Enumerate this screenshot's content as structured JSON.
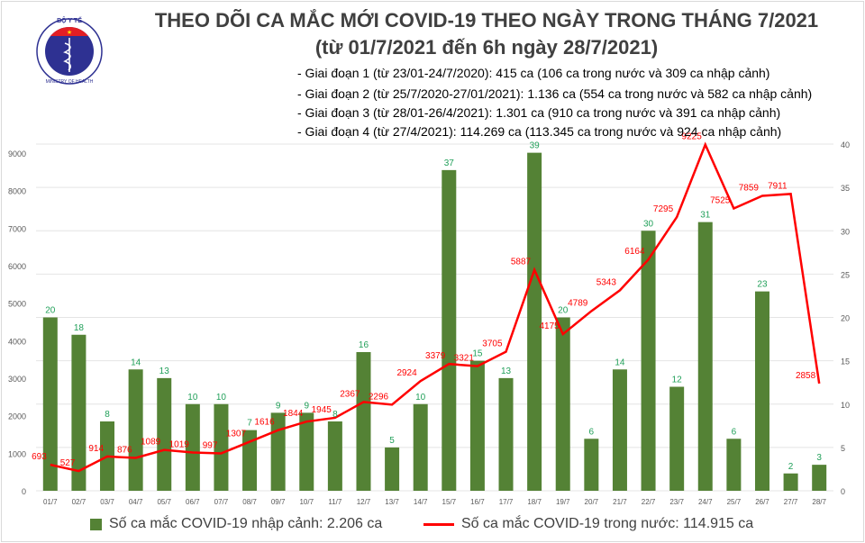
{
  "title": "THEO DÕI CA MẮC MỚI COVID-19 THEO NGÀY TRONG THÁNG 7/2021",
  "subtitle": "(từ 01/7/2021 đến 6h ngày 28/7/2021)",
  "logo": {
    "text_top": "BỘ Y TẾ",
    "text_bottom": "MINISTRY OF HEALTH"
  },
  "phases": [
    "- Giai đoạn 1 (từ 23/01-24/7/2020): 415 ca (106 ca trong nước và 309 ca nhập cảnh)",
    "- Giai đoạn 2 (từ 25/7/2020-27/01/2021): 1.136 ca (554 ca trong nước và 582 ca nhập cảnh)",
    "- Giai đoạn 3 (từ 28/01-26/4/2021): 1.301 ca (910 ca trong nước và 391 ca nhập cảnh)",
    "- Giai đoạn 4 (từ 27/4/2021): 114.269 ca (113.345 ca trong nước và 924 ca nhập cảnh)"
  ],
  "legend": {
    "bar": "Số ca mắc COVID-19 nhập cảnh: 2.206 ca",
    "line": "Số ca mắc COVID-19 trong nước: 114.915 ca"
  },
  "chart_data": {
    "type": "bar+line",
    "categories": [
      "01/7",
      "02/7",
      "03/7",
      "04/7",
      "05/7",
      "06/7",
      "07/7",
      "08/7",
      "09/7",
      "10/7",
      "11/7",
      "12/7",
      "13/7",
      "14/7",
      "15/7",
      "16/7",
      "17/7",
      "18/7",
      "19/7",
      "20/7",
      "21/7",
      "22/7",
      "23/7",
      "24/7",
      "25/7",
      "26/7",
      "27/7",
      "28/7"
    ],
    "series": [
      {
        "name": "Số ca mắc COVID-19 nhập cảnh: 2.206 ca",
        "type": "bar",
        "axis": "right",
        "color": "#548235",
        "label_color": "#22a05a",
        "values": [
          20,
          18,
          8,
          14,
          13,
          10,
          10,
          7,
          9,
          9,
          8,
          16,
          5,
          10,
          37,
          15,
          13,
          39,
          20,
          6,
          14,
          30,
          12,
          31,
          6,
          23,
          2,
          3
        ]
      },
      {
        "name": "Số ca mắc COVID-19 trong nước: 114.915 ca",
        "type": "line",
        "axis": "left",
        "color": "#ff0000",
        "values": [
          693,
          527,
          914,
          876,
          1089,
          1019,
          997,
          1307,
          1616,
          1844,
          1945,
          2367,
          2296,
          2924,
          3379,
          3321,
          3705,
          5887,
          4175,
          4789,
          5343,
          6164,
          7295,
          9225,
          7525,
          7859,
          7911,
          2858
        ]
      }
    ],
    "left_axis": {
      "range": [
        0,
        9000
      ],
      "ticks": [
        0,
        1000,
        2000,
        3000,
        4000,
        5000,
        6000,
        7000,
        8000,
        9000
      ]
    },
    "right_axis": {
      "range": [
        0,
        40
      ],
      "ticks": [
        0,
        5,
        10,
        15,
        20,
        25,
        30,
        35,
        40
      ]
    },
    "grid": true,
    "legend_position": "bottom"
  }
}
